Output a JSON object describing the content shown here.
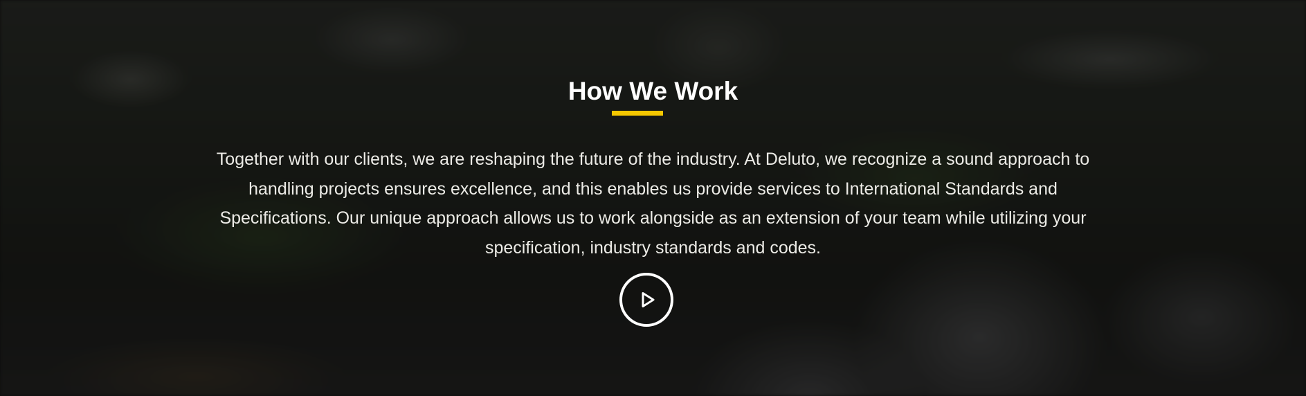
{
  "section": {
    "title": "How We Work",
    "body": "Together with our clients, we are reshaping the future of the industry. At Deluto, we recognize a sound approach to handling projects ensures excellence, and this enables us provide services to International Standards and Specifications. Our unique approach allows us to work alongside as an extension of your team while utilizing your specification, industry standards and codes.",
    "play_button_icon": "play-icon"
  },
  "colors": {
    "accent": "#f5c800",
    "text": "#ffffff",
    "overlay": "#000000"
  }
}
